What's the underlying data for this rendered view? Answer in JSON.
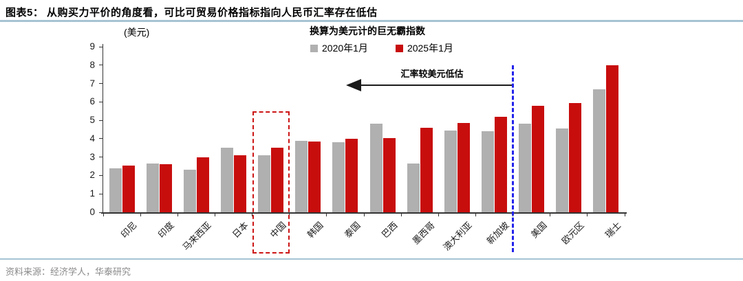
{
  "header": {
    "title": "图表5：  从购买力平价的角度看，可比可贸易价格指标指向人民币汇率存在低估"
  },
  "chart_data": {
    "type": "bar",
    "title": "换算为美元计的巨无霸指数",
    "unit_label": "(美元)",
    "categories": [
      "印尼",
      "印度",
      "马来西亚",
      "日本",
      "中国",
      "韩国",
      "泰国",
      "巴西",
      "墨西哥",
      "澳大利亚",
      "新加坡",
      "美国",
      "欧元区",
      "瑞士"
    ],
    "series": [
      {
        "name": "2020年1月",
        "color": "#B0B0B0",
        "values": [
          2.4,
          2.65,
          2.3,
          3.5,
          3.1,
          3.9,
          3.8,
          4.8,
          2.65,
          4.45,
          4.4,
          4.8,
          4.55,
          6.7
        ]
      },
      {
        "name": "2025年1月",
        "color": "#C80D0D",
        "values": [
          2.55,
          2.6,
          3.0,
          3.1,
          3.5,
          3.85,
          4.0,
          4.05,
          4.6,
          4.85,
          5.2,
          5.8,
          5.95,
          8.0
        ]
      }
    ],
    "ylim": [
      0,
      9
    ],
    "y_ticks": [
      "0",
      "1",
      "2",
      "3",
      "4",
      "5",
      "6",
      "7",
      "8",
      "9"
    ],
    "grid": "off",
    "legend_position": "top-center",
    "annotation": {
      "text": "汇率较美元低估",
      "arrow_direction": "left"
    },
    "highlight_box_category": "中国",
    "divider_line_before_category": "美国"
  },
  "footer": {
    "source": "资料来源：经济学人，华泰研究"
  },
  "colors": {
    "bar_2020": "#B0B0B0",
    "bar_2025": "#C80D0D",
    "title_rule_blue": "#A6C3D3",
    "highlight_dashed_red": "#CC1414",
    "divider_dashed_blue": "#2323EB",
    "axis": "#333333"
  }
}
